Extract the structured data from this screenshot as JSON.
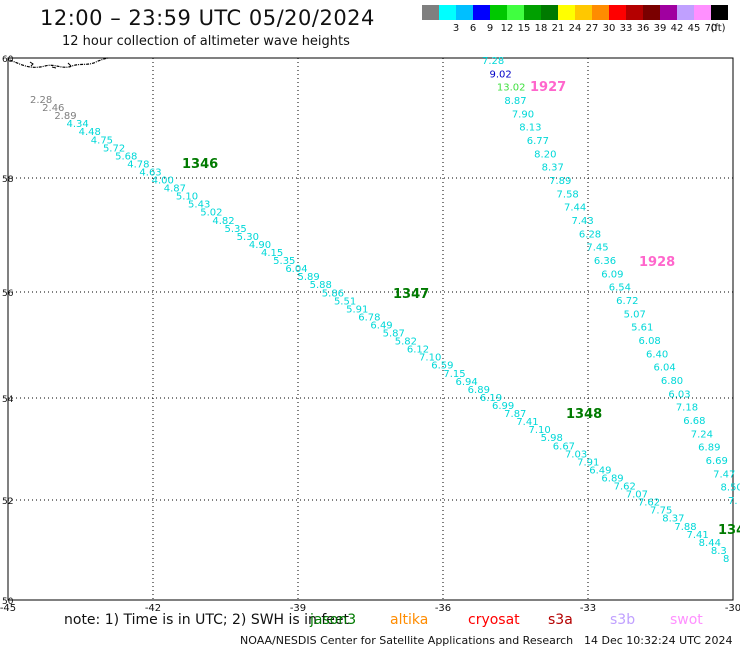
{
  "header": {
    "title": "12:00 – 23:59 UTC 05/20/2024",
    "subtitle": "12 hour collection of altimeter wave heights"
  },
  "legend": {
    "unit_label": "(ft)",
    "bins": [
      {
        "label": "",
        "color": "#7f7f7f"
      },
      {
        "label": "3",
        "color": "#00ffff"
      },
      {
        "label": "6",
        "color": "#00bfff"
      },
      {
        "label": "9",
        "color": "#0000ff"
      },
      {
        "label": "12",
        "color": "#00c800"
      },
      {
        "label": "15",
        "color": "#40ff40"
      },
      {
        "label": "18",
        "color": "#00a000"
      },
      {
        "label": "21",
        "color": "#007a00"
      },
      {
        "label": "24",
        "color": "#ffff00"
      },
      {
        "label": "27",
        "color": "#ffc800"
      },
      {
        "label": "30",
        "color": "#ff8c00"
      },
      {
        "label": "33",
        "color": "#ff0000"
      },
      {
        "label": "36",
        "color": "#b40000"
      },
      {
        "label": "39",
        "color": "#7a0000"
      },
      {
        "label": "42",
        "color": "#a000a0"
      },
      {
        "label": "45",
        "color": "#c0a0ff"
      },
      {
        "label": "70",
        "color": "#ff90ff"
      },
      {
        "label": "",
        "color": "#000000"
      }
    ]
  },
  "map": {
    "lat_ticks": [
      "60",
      "58",
      "56",
      "54",
      "52",
      "50"
    ],
    "lon_ticks": [
      "-45",
      "-42",
      "-39",
      "-36",
      "-33",
      "-30"
    ],
    "passes": [
      {
        "id": "1346",
        "color": "#007a00"
      },
      {
        "id": "1347",
        "color": "#007a00"
      },
      {
        "id": "1348",
        "color": "#007a00"
      },
      {
        "id": "134",
        "color": "#007a00"
      },
      {
        "id": "1927",
        "color": "#ff66cc"
      },
      {
        "id": "1928",
        "color": "#ff66cc"
      }
    ],
    "track1": [
      "2.28",
      "2.46",
      "2.89",
      "4.34",
      "4.48",
      "4.75",
      "5.72",
      "5.68",
      "4.78",
      "4.63",
      "4.00",
      "4.87",
      "5.10",
      "5.43",
      "5.02",
      "4.82",
      "5.35",
      "5.30",
      "4.90",
      "4.15",
      "5.35",
      "6.04",
      "5.89",
      "5.88",
      "5.86",
      "5.51",
      "5.91",
      "6.78",
      "6.49",
      "5.87",
      "5.82",
      "6.12",
      "7.10",
      "6.59",
      "7.15",
      "6.94",
      "6.89",
      "6.19",
      "6.99",
      "7.87",
      "7.41",
      "7.10",
      "5.98",
      "6.67",
      "7.03",
      "7.91",
      "6.49",
      "6.89",
      "7.62",
      "7.07",
      "7.62",
      "7.75",
      "8.37",
      "7.88",
      "7.41",
      "8.44",
      "8.3",
      "8"
    ],
    "track2": [
      "7.28",
      "9.02",
      "13.02",
      "8.87",
      "7.90",
      "8.13",
      "6.77",
      "8.20",
      "8.37",
      "7.89",
      "7.58",
      "7.44",
      "7.43",
      "6.28",
      "7.45",
      "6.36",
      "6.09",
      "6.54",
      "6.72",
      "5.07",
      "5.61",
      "6.08",
      "6.40",
      "6.04",
      "6.80",
      "6.03",
      "7.18",
      "6.68",
      "7.24",
      "6.89",
      "6.69",
      "7.47",
      "8.50",
      "7."
    ]
  },
  "notes": {
    "note_text": "note:  1) Time is in UTC;  2) SWH is in feet",
    "satellites": [
      {
        "name": "jason3",
        "color": "#007a00"
      },
      {
        "name": "altika",
        "color": "#ff8c00"
      },
      {
        "name": "cryosat",
        "color": "#ff0000"
      },
      {
        "name": "s3a",
        "color": "#b40000"
      },
      {
        "name": "s3b",
        "color": "#c0a0ff"
      },
      {
        "name": "swot",
        "color": "#ff90ff"
      }
    ]
  },
  "footer": {
    "credit": "NOAA/NESDIS Center for Satellite Applications and Research",
    "date": "14 Dec 10:32:24 UTC 2024"
  }
}
